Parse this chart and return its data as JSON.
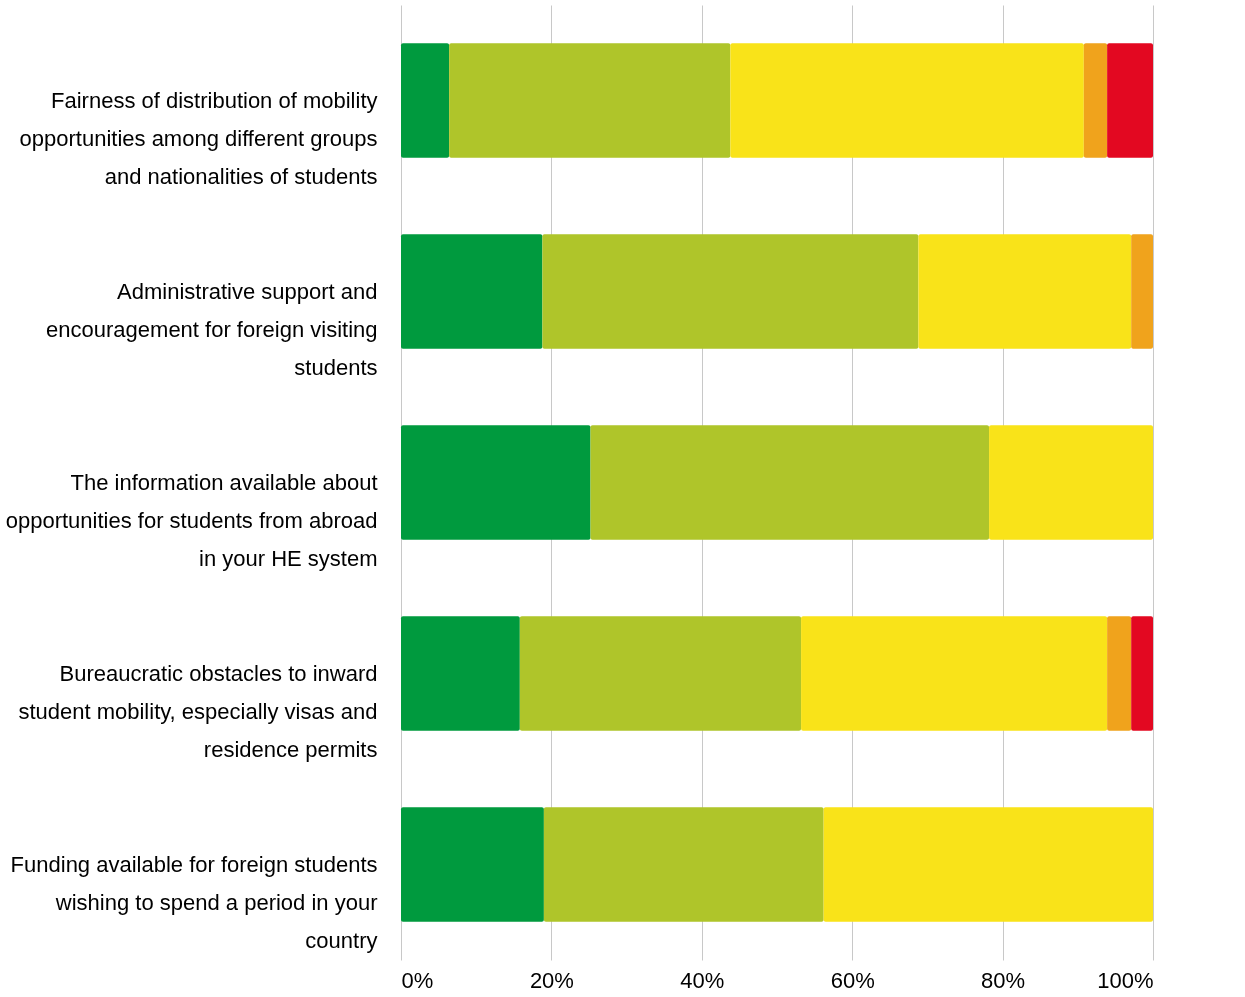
{
  "chart_data": {
    "type": "bar",
    "orientation": "horizontal",
    "stacked": true,
    "categories": [
      "Fairness of distribution of mobility opportunities among different groups and nationalities of students",
      "Administrative support and encouragement for foreign visiting students",
      "The information available about opportunities for students from abroad in your HE system",
      "Bureaucratic obstacles to inward student mobility, especially visas and residence permits",
      "Funding available for foreign students wishing to spend a period in your country"
    ],
    "series": [
      {
        "color": "#009a3e",
        "values": [
          6.4,
          18.8,
          25.2,
          15.8,
          19.0
        ]
      },
      {
        "color": "#afc52a",
        "values": [
          37.4,
          50.0,
          53.0,
          37.4,
          37.2
        ]
      },
      {
        "color": "#f9e319",
        "values": [
          47.0,
          28.3,
          21.8,
          40.7,
          43.8
        ]
      },
      {
        "color": "#f0a31c",
        "values": [
          3.1,
          2.9,
          0,
          3.2,
          0
        ]
      },
      {
        "color": "#e30821",
        "values": [
          6.1,
          0,
          0,
          2.9,
          0
        ]
      }
    ],
    "xlim": [
      0,
      100
    ],
    "xticks": [
      {
        "value": 0,
        "label": "0%"
      },
      {
        "value": 20,
        "label": "20%"
      },
      {
        "value": 40,
        "label": "40%"
      },
      {
        "value": 60,
        "label": "60%"
      },
      {
        "value": 80,
        "label": "80%"
      },
      {
        "value": 100,
        "label": "100%"
      }
    ],
    "grid": "x",
    "legend": false
  }
}
